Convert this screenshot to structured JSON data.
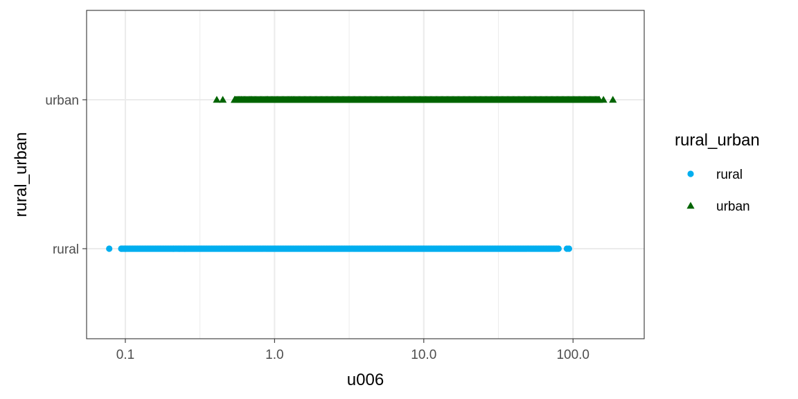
{
  "chart_data": {
    "type": "scatter",
    "xlabel": "u006",
    "ylabel": "rural_urban",
    "x_scale": "log10",
    "xlim": [
      0.055,
      300
    ],
    "x_ticks": [
      0.1,
      1,
      10,
      100
    ],
    "x_tick_labels": [
      "0.1",
      "1.0",
      "10.0",
      "100.0"
    ],
    "categories": [
      "rural",
      "urban"
    ],
    "grid": true,
    "legend": {
      "title": "rural_urban",
      "placement": "right",
      "entries": [
        "rural",
        "urban"
      ]
    },
    "series": [
      {
        "name": "rural",
        "category": "rural",
        "marker": "circle",
        "color": "#00AEEF",
        "min_x": 0.078,
        "max_x": 94,
        "dense_range": [
          0.094,
          80
        ],
        "isolated_x": [
          0.078,
          0.094,
          0.1,
          0.21,
          0.23,
          0.25,
          91,
          94
        ]
      },
      {
        "name": "urban",
        "category": "urban",
        "marker": "triangle",
        "color": "#006400",
        "min_x": 0.41,
        "max_x": 185,
        "dense_range": [
          0.54,
          150
        ],
        "isolated_x": [
          0.41,
          0.45,
          0.54,
          0.6,
          0.7,
          0.9,
          1.3,
          150,
          160,
          185
        ]
      }
    ]
  }
}
